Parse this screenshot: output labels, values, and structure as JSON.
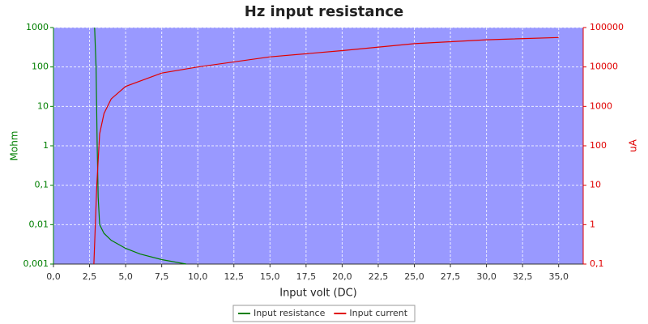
{
  "chart_data": {
    "type": "line",
    "title": "Hz input resistance",
    "x_label": "Input volt (DC)",
    "y_label": "Mohm",
    "y2_label": "uA",
    "xlim": [
      0,
      36.7
    ],
    "xticks": [
      {
        "value": 0,
        "label": "0,0"
      },
      {
        "value": 2.5,
        "label": "2,5"
      },
      {
        "value": 5,
        "label": "5,0"
      },
      {
        "value": 7.5,
        "label": "7,5"
      },
      {
        "value": 10,
        "label": "10,0"
      },
      {
        "value": 12.5,
        "label": "12,5"
      },
      {
        "value": 15,
        "label": "15,0"
      },
      {
        "value": 17.5,
        "label": "17,5"
      },
      {
        "value": 20,
        "label": "20,0"
      },
      {
        "value": 22.5,
        "label": "22,5"
      },
      {
        "value": 25,
        "label": "25,0"
      },
      {
        "value": 27.5,
        "label": "27,5"
      },
      {
        "value": 30,
        "label": "30,0"
      },
      {
        "value": 32.5,
        "label": "32,5"
      },
      {
        "value": 35,
        "label": "35,0"
      }
    ],
    "ylim": [
      0.001,
      1000
    ],
    "yticks": [
      {
        "value": 0.001,
        "label": "0,001"
      },
      {
        "value": 0.01,
        "label": "0,01"
      },
      {
        "value": 0.1,
        "label": "0,1"
      },
      1,
      10,
      100,
      1000
    ],
    "y2lim": [
      0.1,
      100000
    ],
    "y2ticks": [
      {
        "value": 0.1,
        "label": "0,1"
      },
      1,
      10,
      100,
      1000,
      10000,
      100000
    ],
    "log_scale": true,
    "grid": true,
    "legend": "bottom",
    "series": [
      {
        "name": "Input resistance",
        "color": "#007f00",
        "x": [
          2.85,
          2.95,
          3.03,
          3.1,
          3.2,
          3.5,
          4,
          5,
          6,
          7.5,
          9.2
        ],
        "values": [
          1000,
          100,
          1,
          0.05,
          0.01,
          0.006,
          0.004,
          0.0025,
          0.0018,
          0.0013,
          0.001
        ]
      },
      {
        "name": "Input current",
        "color": "#e00000",
        "axis": "y2",
        "x": [
          2.8,
          3,
          3.2,
          3.5,
          4,
          5,
          7.5,
          10,
          15,
          20,
          25,
          30,
          35
        ],
        "values": [
          0.1,
          10,
          200,
          660,
          1550,
          3200,
          7000,
          10000,
          18000,
          26000,
          39000,
          49000,
          56000
        ]
      }
    ]
  }
}
